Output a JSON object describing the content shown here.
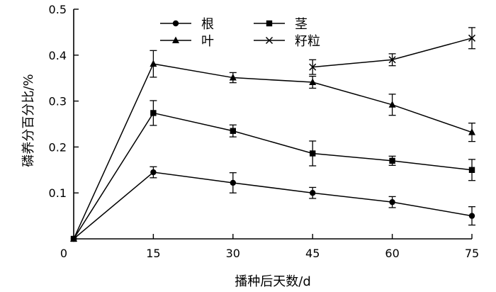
{
  "chart_data": {
    "type": "line",
    "title": "",
    "xlabel": "播种后天数/d",
    "ylabel": "磷养分百分比/%",
    "xlim": [
      0,
      75
    ],
    "ylim": [
      0,
      0.5
    ],
    "x_ticks": [
      "0",
      "15",
      "30",
      "45",
      "60",
      "75"
    ],
    "y_ticks": [
      "0.1",
      "0.2",
      "0.3",
      "0.4",
      "0.5"
    ],
    "grid": false,
    "legend_position": "top-center",
    "series": [
      {
        "name": "根",
        "marker": "circle",
        "x": [
          0,
          15,
          30,
          45,
          60,
          75
        ],
        "values": [
          0,
          0.145,
          0.122,
          0.1,
          0.08,
          0.05
        ],
        "errors": [
          0,
          0.012,
          0.022,
          0.012,
          0.012,
          0.02
        ]
      },
      {
        "name": "茎",
        "marker": "square",
        "x": [
          0,
          15,
          30,
          45,
          60,
          75
        ],
        "values": [
          0,
          0.274,
          0.235,
          0.186,
          0.17,
          0.15
        ],
        "errors": [
          0,
          0.027,
          0.013,
          0.027,
          0.01,
          0.023
        ]
      },
      {
        "name": "叶",
        "marker": "triangle",
        "x": [
          0,
          15,
          30,
          45,
          60,
          75
        ],
        "values": [
          0,
          0.381,
          0.351,
          0.341,
          0.292,
          0.232
        ],
        "errors": [
          0,
          0.029,
          0.011,
          0.013,
          0.023,
          0.02
        ]
      },
      {
        "name": "籽粒",
        "marker": "x",
        "x": [
          45,
          60,
          75
        ],
        "values": [
          0.374,
          0.39,
          0.437
        ],
        "errors": [
          0.016,
          0.013,
          0.023
        ]
      }
    ]
  }
}
